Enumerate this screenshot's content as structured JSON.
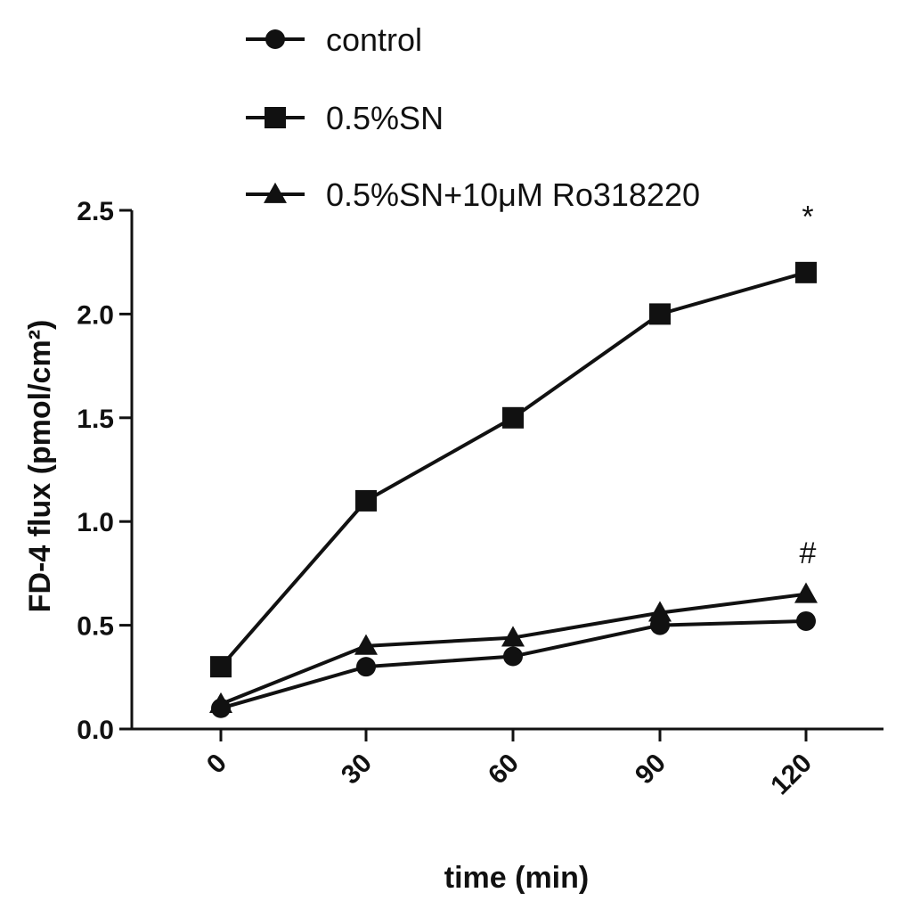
{
  "chart_data": {
    "type": "line",
    "xlabel": "time (min)",
    "ylabel": "FD-4 flux (pmol/cm²)",
    "x": [
      0,
      30,
      60,
      90,
      120
    ],
    "x_tick_labels": [
      "0",
      "30",
      "60",
      "90",
      "120"
    ],
    "y_ticks": [
      0.0,
      0.5,
      1.0,
      1.5,
      2.0,
      2.5
    ],
    "y_tick_labels": [
      "0.0",
      "0.5",
      "1.0",
      "1.5",
      "2.0",
      "2.5"
    ],
    "ylim": [
      0,
      2.5
    ],
    "grid": false,
    "legend_position": "top",
    "series": [
      {
        "name": "control",
        "marker": "circle",
        "values": [
          0.1,
          0.3,
          0.35,
          0.5,
          0.52
        ]
      },
      {
        "name": "0.5%SN",
        "marker": "square",
        "values": [
          0.3,
          1.1,
          1.5,
          2.0,
          2.2
        ]
      },
      {
        "name": "0.5%SN+10μM Ro318220",
        "marker": "triangle",
        "values": [
          0.12,
          0.4,
          0.44,
          0.56,
          0.65
        ]
      }
    ],
    "annotations": [
      {
        "text": "*",
        "x": 120,
        "y": 2.42
      },
      {
        "text": "#",
        "x": 120,
        "y": 0.8
      }
    ],
    "line_color": "#111111"
  }
}
